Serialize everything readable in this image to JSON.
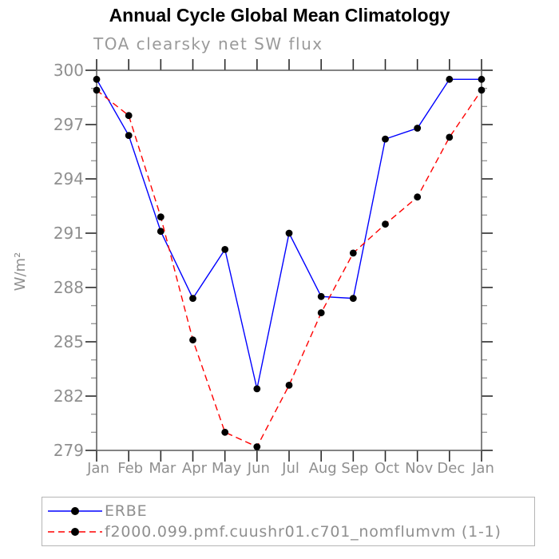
{
  "page": {
    "background": "#ffffff"
  },
  "chart_data": {
    "type": "line",
    "title": "Annual Cycle Global Mean Climatology",
    "subtitle": "TOA clearsky net SW flux",
    "ylabel": "W/m²",
    "x_categories": [
      "Jan",
      "Feb",
      "Mar",
      "Apr",
      "May",
      "Jun",
      "Jul",
      "Aug",
      "Sep",
      "Oct",
      "Nov",
      "Dec",
      "Jan"
    ],
    "ylim": [
      279,
      300
    ],
    "yticks": [
      279,
      282,
      285,
      288,
      291,
      294,
      297,
      300
    ],
    "ytick_minor_interval": 1,
    "grid": false,
    "legend_position": "bottom-left-box",
    "axis_color": "#5a5a5a",
    "tick_major_color": "#2a2a2a",
    "tick_minor_color": "#9a9a9a",
    "label_color": "#8f8f8f",
    "marker_color": "#000000",
    "series": [
      {
        "name": "ERBE",
        "color": "#0000ff",
        "line_style": "solid",
        "marker": "filled-circle",
        "values": [
          299.5,
          296.4,
          291.1,
          287.4,
          290.1,
          282.4,
          291.0,
          287.5,
          287.4,
          296.2,
          296.8,
          299.5,
          299.5
        ]
      },
      {
        "name": "f2000.099.pmf.cuushr01.c701_nomflumvm (1-1)",
        "color": "#ff0000",
        "line_style": "dashed",
        "marker": "filled-circle",
        "values": [
          298.9,
          297.5,
          291.9,
          285.1,
          280.0,
          279.2,
          282.6,
          286.6,
          289.9,
          291.5,
          293.0,
          296.3,
          298.9
        ]
      }
    ]
  }
}
